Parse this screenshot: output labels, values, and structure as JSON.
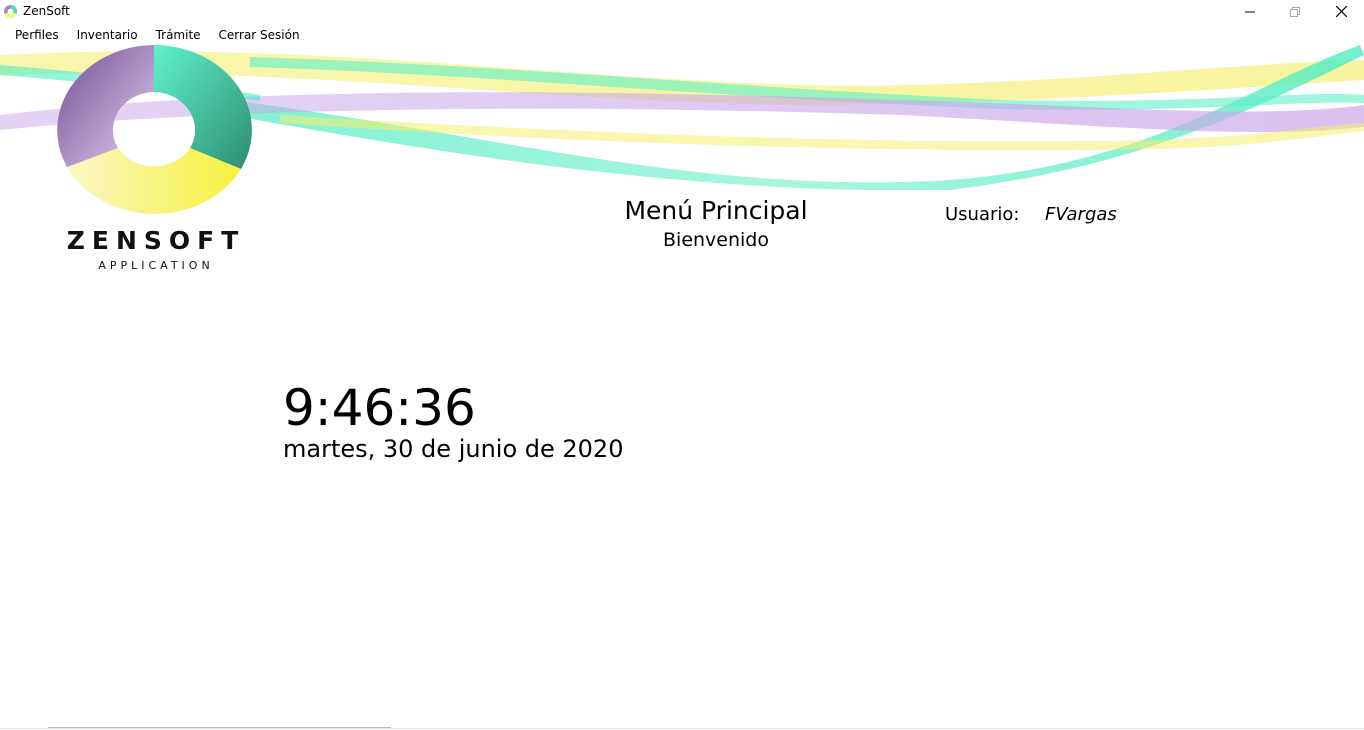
{
  "window": {
    "title": "ZenSoft",
    "controls": {
      "minimize": "minimize-icon",
      "maximize": "restore-icon",
      "close": "close-icon"
    }
  },
  "menu": {
    "items": [
      "Perfiles",
      "Inventario",
      "Trámite",
      "Cerrar Sesión"
    ]
  },
  "logo": {
    "word": "ZENSOFT",
    "sub": "APPLICATION",
    "colors": {
      "purple": "#8e63a8",
      "teal": "#4fd6b0",
      "yellow": "#f6f27a"
    }
  },
  "header": {
    "title": "Menú Principal",
    "subtitle": "Bienvenido"
  },
  "user": {
    "label": "Usuario:",
    "name": "FVargas"
  },
  "clock": {
    "time": "9:46:36",
    "date": "martes, 30 de junio de 2020"
  }
}
